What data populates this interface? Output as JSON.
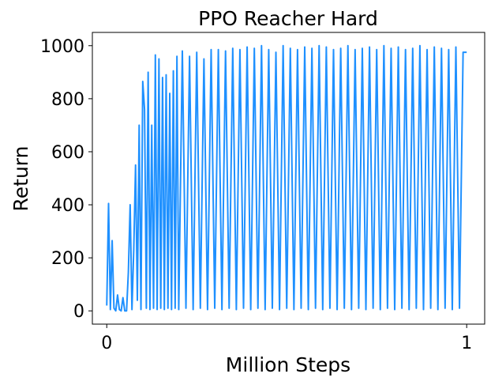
{
  "chart_data": {
    "type": "line",
    "title": "PPO Reacher Hard",
    "xlabel": "Million Steps",
    "ylabel": "Return",
    "xlim": [
      -0.04,
      1.05
    ],
    "ylim": [
      -50,
      1050
    ],
    "xticks": [
      0,
      1
    ],
    "xtick_labels": [
      "0",
      "1"
    ],
    "yticks": [
      0,
      200,
      400,
      600,
      800,
      1000
    ],
    "ytick_labels": [
      "0",
      "200",
      "400",
      "600",
      "800",
      "1000"
    ],
    "grid": false,
    "legend": null,
    "series": [
      {
        "color": "#1e90ff",
        "x": [
          0.0,
          0.005,
          0.01,
          0.015,
          0.02,
          0.025,
          0.03,
          0.035,
          0.04,
          0.045,
          0.05,
          0.055,
          0.06,
          0.065,
          0.07,
          0.075,
          0.08,
          0.085,
          0.09,
          0.095,
          0.1,
          0.105,
          0.11,
          0.115,
          0.12,
          0.125,
          0.13,
          0.135,
          0.14,
          0.145,
          0.15,
          0.155,
          0.16,
          0.165,
          0.17,
          0.175,
          0.18,
          0.185,
          0.19,
          0.195,
          0.2,
          0.21,
          0.22,
          0.23,
          0.24,
          0.25,
          0.26,
          0.27,
          0.28,
          0.29,
          0.3,
          0.31,
          0.32,
          0.33,
          0.34,
          0.35,
          0.36,
          0.37,
          0.38,
          0.39,
          0.4,
          0.41,
          0.42,
          0.43,
          0.44,
          0.45,
          0.46,
          0.47,
          0.48,
          0.49,
          0.5,
          0.51,
          0.52,
          0.53,
          0.54,
          0.55,
          0.56,
          0.57,
          0.58,
          0.59,
          0.6,
          0.61,
          0.62,
          0.63,
          0.64,
          0.65,
          0.66,
          0.67,
          0.68,
          0.69,
          0.7,
          0.71,
          0.72,
          0.73,
          0.74,
          0.75,
          0.76,
          0.77,
          0.78,
          0.79,
          0.8,
          0.81,
          0.82,
          0.83,
          0.84,
          0.85,
          0.86,
          0.87,
          0.88,
          0.89,
          0.9,
          0.91,
          0.92,
          0.93,
          0.94,
          0.95,
          0.96,
          0.97,
          0.98,
          0.99,
          1.0
        ],
        "y": [
          20,
          405,
          5,
          265,
          10,
          0,
          60,
          5,
          0,
          50,
          0,
          0,
          145,
          400,
          5,
          230,
          550,
          40,
          700,
          5,
          865,
          760,
          10,
          900,
          5,
          700,
          10,
          965,
          5,
          950,
          10,
          880,
          5,
          890,
          10,
          820,
          5,
          905,
          10,
          960,
          5,
          980,
          10,
          960,
          5,
          975,
          10,
          950,
          5,
          985,
          10,
          985,
          5,
          980,
          10,
          990,
          5,
          985,
          10,
          995,
          5,
          990,
          10,
          1000,
          5,
          985,
          10,
          975,
          5,
          1000,
          10,
          990,
          5,
          985,
          10,
          995,
          5,
          990,
          10,
          1000,
          5,
          995,
          10,
          985,
          5,
          990,
          10,
          1000,
          5,
          985,
          10,
          990,
          5,
          995,
          10,
          985,
          5,
          1000,
          10,
          990,
          5,
          995,
          10,
          985,
          5,
          990,
          10,
          1000,
          5,
          985,
          10,
          995,
          5,
          990,
          10,
          985,
          5,
          995,
          10,
          975,
          975
        ]
      }
    ]
  }
}
